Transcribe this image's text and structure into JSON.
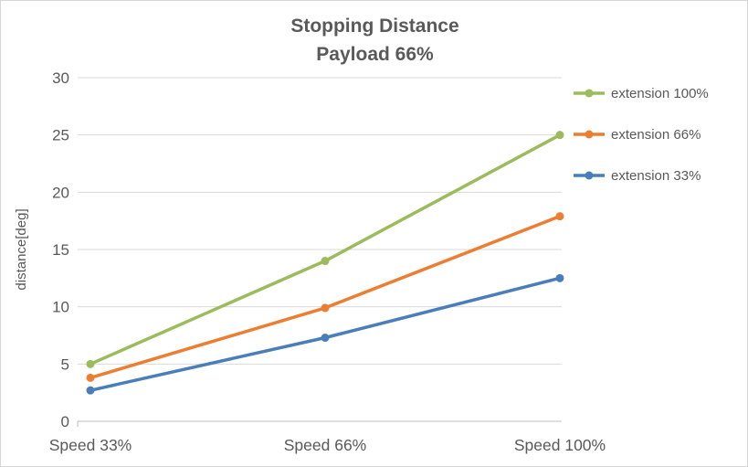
{
  "chart_data": {
    "type": "line",
    "title": "Stopping Distance",
    "subtitle": "Payload 66%",
    "categories": [
      "Speed 33%",
      "Speed 66%",
      "Speed 100%"
    ],
    "series": [
      {
        "name": "extension 100%",
        "values": [
          5,
          14,
          25
        ],
        "color": "#9CBB5C"
      },
      {
        "name": "extension 66%",
        "values": [
          3.8,
          9.9,
          17.9
        ],
        "color": "#ED7D31"
      },
      {
        "name": "extension 33%",
        "values": [
          2.7,
          7.3,
          12.5
        ],
        "color": "#4A7EBB"
      }
    ],
    "xlabel": "",
    "ylabel": "distance[deg]",
    "ylim": [
      0,
      30
    ],
    "yticks": [
      0,
      5,
      10,
      15,
      20,
      25,
      30
    ],
    "grid": true,
    "legend_position": "right",
    "text_color": "#595959",
    "grid_color": "#D9D9D9",
    "axis_color": "#BFBFBF",
    "background": "#FFFFFF"
  }
}
